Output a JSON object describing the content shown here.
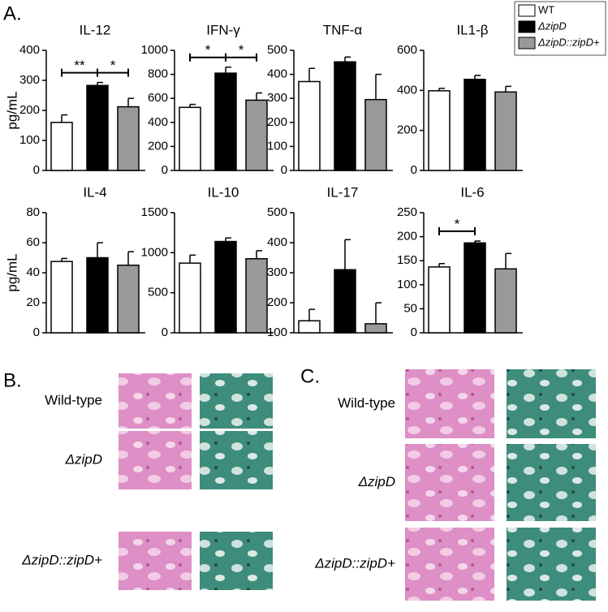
{
  "panel_labels": {
    "a": "A.",
    "b": "B.",
    "c": "C."
  },
  "legend": [
    {
      "name": "WT",
      "color": "#ffffff"
    },
    {
      "name": "ΔzipD",
      "color": "#000000"
    },
    {
      "name": "ΔzipD::zipD+",
      "color": "#999999"
    }
  ],
  "chart_data": [
    {
      "type": "bar",
      "title": "IL-12",
      "y_label": "pg/mL",
      "values": [
        160,
        283,
        212
      ],
      "errors": [
        25,
        10,
        28
      ],
      "ylim": [
        0,
        400
      ],
      "yticks": [
        0,
        100,
        200,
        300,
        400
      ],
      "annotations": [
        {
          "text": "**",
          "between": [
            0,
            1
          ]
        },
        {
          "text": "*",
          "between": [
            1,
            2
          ]
        }
      ]
    },
    {
      "type": "bar",
      "title": "IFN-γ",
      "values": [
        525,
        810,
        585
      ],
      "errors": [
        25,
        50,
        60
      ],
      "ylim": [
        0,
        1000
      ],
      "yticks": [
        0,
        200,
        400,
        600,
        800,
        1000
      ],
      "annotations": [
        {
          "text": "*",
          "between": [
            0,
            1
          ]
        },
        {
          "text": "*",
          "between": [
            1,
            2
          ]
        }
      ]
    },
    {
      "type": "bar",
      "title": "TNF-α",
      "values": [
        370,
        452,
        295
      ],
      "errors": [
        55,
        20,
        105
      ],
      "ylim": [
        0,
        500
      ],
      "yticks": [
        0,
        100,
        200,
        300,
        400,
        500
      ]
    },
    {
      "type": "bar",
      "title": "IL1-β",
      "values": [
        398,
        455,
        392
      ],
      "errors": [
        12,
        20,
        28
      ],
      "ylim": [
        0,
        600
      ],
      "yticks": [
        0,
        200,
        400,
        600
      ]
    },
    {
      "type": "bar",
      "title": "IL-4",
      "y_label": "pg/mL",
      "values": [
        47.5,
        50,
        45
      ],
      "errors": [
        2,
        10,
        9
      ],
      "ylim": [
        0,
        80
      ],
      "yticks": [
        0,
        20,
        40,
        60,
        80
      ]
    },
    {
      "type": "bar",
      "title": "IL-10",
      "values": [
        870,
        1140,
        925
      ],
      "errors": [
        100,
        45,
        100
      ],
      "ylim": [
        0,
        1500
      ],
      "yticks": [
        0,
        500,
        1000,
        1500
      ]
    },
    {
      "type": "bar",
      "title": "IL-17",
      "values": [
        140,
        310,
        130
      ],
      "errors": [
        38,
        100,
        70
      ],
      "ylim": [
        100,
        500
      ],
      "yticks": [
        100,
        200,
        300,
        400,
        500
      ]
    },
    {
      "type": "bar",
      "title": "IL-6",
      "values": [
        137,
        187,
        133
      ],
      "errors": [
        7,
        4,
        32
      ],
      "ylim": [
        0,
        250
      ],
      "yticks": [
        0,
        50,
        100,
        150,
        200,
        250
      ],
      "annotations": [
        {
          "text": "*",
          "between": [
            0,
            1
          ]
        }
      ]
    }
  ],
  "histology_b": {
    "rows": [
      "Wild-type",
      "ΔzipD",
      "ΔzipD::zipD+"
    ]
  },
  "histology_c": {
    "rows": [
      "Wild-type",
      "ΔzipD",
      "ΔzipD::zipD+"
    ]
  }
}
